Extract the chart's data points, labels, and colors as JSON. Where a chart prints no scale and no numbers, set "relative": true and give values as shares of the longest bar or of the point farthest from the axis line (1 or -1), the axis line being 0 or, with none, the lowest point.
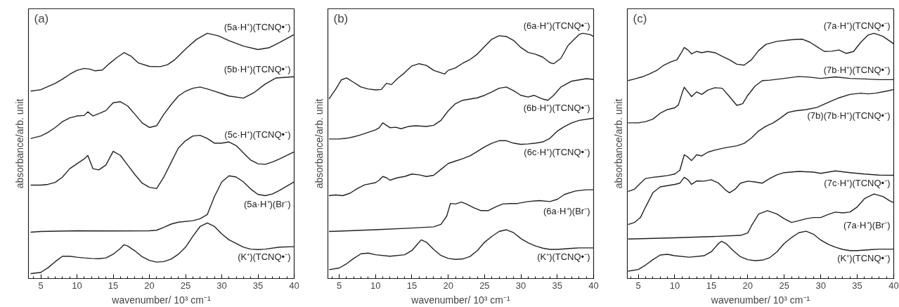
{
  "chart_data": [
    {
      "type": "line",
      "title": "(a)",
      "xlabel": "wavenumber/ 10³ cm⁻¹",
      "ylabel": "absorbance/arb. unit",
      "relative": true,
      "tick_labels": "x",
      "xlim": [
        3.3,
        40
      ],
      "xticks": [
        {
          "value": 4,
          "label": null
        },
        5,
        {
          "value": 6,
          "label": null
        },
        {
          "value": 7,
          "label": null
        },
        {
          "value": 8,
          "label": null
        },
        {
          "value": 9,
          "label": null
        },
        10,
        {
          "value": 11,
          "label": null
        },
        {
          "value": 12,
          "label": null
        },
        {
          "value": 13,
          "label": null
        },
        {
          "value": 14,
          "label": null
        },
        15,
        {
          "value": 16,
          "label": null
        },
        {
          "value": 17,
          "label": null
        },
        {
          "value": 18,
          "label": null
        },
        {
          "value": 19,
          "label": null
        },
        20,
        {
          "value": 21,
          "label": null
        },
        {
          "value": 22,
          "label": null
        },
        {
          "value": 23,
          "label": null
        },
        {
          "value": 24,
          "label": null
        },
        25,
        {
          "value": 26,
          "label": null
        },
        {
          "value": 27,
          "label": null
        },
        {
          "value": 28,
          "label": null
        },
        {
          "value": 29,
          "label": null
        },
        30,
        {
          "value": 31,
          "label": null
        },
        {
          "value": 32,
          "label": null
        },
        {
          "value": 33,
          "label": null
        },
        {
          "value": 34,
          "label": null
        },
        35,
        {
          "value": 36,
          "label": null
        },
        {
          "value": 37,
          "label": null
        },
        {
          "value": 38,
          "label": null
        },
        {
          "value": 39,
          "label": null
        },
        40
      ],
      "series": [
        {
          "name": "(5a·H⁺)(TCNQ•⁻)",
          "color": "#222222",
          "x": [
            3.6,
            4.5,
            5,
            6,
            7,
            8,
            9,
            10,
            11,
            11.8,
            12.5,
            13.5,
            14.5,
            15.5,
            16.5,
            17.5,
            18.5,
            20,
            21.5,
            22.5,
            23.5,
            25,
            26.5,
            28,
            29.5,
            31,
            33,
            35,
            36.5,
            38,
            40
          ],
          "values": [
            0.764,
            0.768,
            0.77,
            0.783,
            0.796,
            0.813,
            0.833,
            0.849,
            0.857,
            0.854,
            0.847,
            0.85,
            0.877,
            0.901,
            0.921,
            0.906,
            0.879,
            0.865,
            0.864,
            0.872,
            0.892,
            0.936,
            0.975,
            1.0,
            0.99,
            0.97,
            0.948,
            0.934,
            0.941,
            0.963,
            0.995
          ]
        },
        {
          "name": "(5b·H⁺)(TCNQ•⁻)",
          "color": "#222222",
          "x": [
            3.6,
            5,
            6,
            7,
            8,
            9,
            10,
            11,
            11.5,
            12.2,
            13,
            14,
            15,
            16,
            17,
            18,
            19,
            20,
            21,
            22,
            23,
            24,
            25,
            26,
            27,
            28,
            29,
            30,
            31,
            33,
            34.5,
            36,
            37.5,
            40
          ],
          "values": [
            0.571,
            0.581,
            0.596,
            0.616,
            0.64,
            0.655,
            0.663,
            0.665,
            0.68,
            0.663,
            0.672,
            0.685,
            0.717,
            0.721,
            0.704,
            0.67,
            0.635,
            0.616,
            0.623,
            0.67,
            0.709,
            0.744,
            0.764,
            0.776,
            0.781,
            0.773,
            0.764,
            0.754,
            0.744,
            0.736,
            0.759,
            0.793,
            0.818,
            0.823
          ]
        },
        {
          "name": "(5c·H⁺)(TCNQ•⁻)",
          "color": "#222222",
          "x": [
            3.6,
            5,
            6,
            7,
            8,
            9,
            10,
            11,
            11.5,
            12.2,
            13,
            14,
            15,
            16,
            17,
            18,
            19,
            20,
            21,
            22,
            23,
            24,
            25,
            26,
            27,
            28,
            29,
            30,
            31,
            32,
            33,
            34,
            35,
            36,
            37,
            38,
            40
          ],
          "values": [
            0.381,
            0.381,
            0.384,
            0.392,
            0.414,
            0.448,
            0.468,
            0.488,
            0.502,
            0.448,
            0.443,
            0.463,
            0.519,
            0.502,
            0.463,
            0.424,
            0.389,
            0.372,
            0.367,
            0.414,
            0.473,
            0.532,
            0.562,
            0.581,
            0.584,
            0.571,
            0.552,
            0.552,
            0.557,
            0.542,
            0.512,
            0.483,
            0.468,
            0.466,
            0.475,
            0.488,
            0.517
          ]
        },
        {
          "name": "(5a·H⁺)(Br⁻)",
          "color": "#222222",
          "x": [
            3.6,
            5,
            10,
            15,
            20,
            21,
            22,
            23,
            24,
            26,
            27,
            28,
            29,
            30,
            31,
            32,
            33,
            34,
            35,
            36,
            37,
            38,
            40
          ],
          "values": [
            0.189,
            0.192,
            0.195,
            0.194,
            0.195,
            0.197,
            0.209,
            0.222,
            0.23,
            0.236,
            0.244,
            0.261,
            0.335,
            0.394,
            0.419,
            0.414,
            0.394,
            0.365,
            0.343,
            0.338,
            0.345,
            0.36,
            0.394
          ]
        },
        {
          "name": "(K⁺)(TCNQ•⁻)",
          "color": "#222222",
          "x": [
            3.6,
            5,
            6,
            7,
            8,
            9,
            10,
            11,
            12,
            13,
            14,
            15,
            16,
            16.5,
            17,
            18,
            19,
            20,
            21,
            22,
            23,
            24,
            25,
            26,
            27,
            28,
            29,
            30,
            31,
            32,
            33,
            34,
            35,
            36,
            38,
            40
          ],
          "values": [
            0.02,
            0.025,
            0.044,
            0.069,
            0.091,
            0.091,
            0.087,
            0.084,
            0.082,
            0.081,
            0.084,
            0.099,
            0.123,
            0.138,
            0.133,
            0.113,
            0.089,
            0.074,
            0.067,
            0.069,
            0.079,
            0.099,
            0.128,
            0.172,
            0.212,
            0.227,
            0.212,
            0.182,
            0.158,
            0.143,
            0.128,
            0.12,
            0.118,
            0.12,
            0.128,
            0.13
          ]
        }
      ]
    },
    {
      "type": "line",
      "title": "(b)",
      "xlabel": "wavenumber/ 10³ cm⁻¹",
      "ylabel": "absorbance/arb. unit",
      "relative": true,
      "tick_labels": "x",
      "xlim": [
        3.45,
        40
      ],
      "xticks": [
        {
          "value": 4,
          "label": null
        },
        5,
        {
          "value": 6,
          "label": null
        },
        {
          "value": 7,
          "label": null
        },
        {
          "value": 8,
          "label": null
        },
        {
          "value": 9,
          "label": null
        },
        10,
        {
          "value": 11,
          "label": null
        },
        {
          "value": 12,
          "label": null
        },
        {
          "value": 13,
          "label": null
        },
        {
          "value": 14,
          "label": null
        },
        15,
        {
          "value": 16,
          "label": null
        },
        {
          "value": 17,
          "label": null
        },
        {
          "value": 18,
          "label": null
        },
        {
          "value": 19,
          "label": null
        },
        20,
        {
          "value": 21,
          "label": null
        },
        {
          "value": 22,
          "label": null
        },
        {
          "value": 23,
          "label": null
        },
        {
          "value": 24,
          "label": null
        },
        25,
        {
          "value": 26,
          "label": null
        },
        {
          "value": 27,
          "label": null
        },
        {
          "value": 28,
          "label": null
        },
        {
          "value": 29,
          "label": null
        },
        30,
        {
          "value": 31,
          "label": null
        },
        {
          "value": 32,
          "label": null
        },
        {
          "value": 33,
          "label": null
        },
        {
          "value": 34,
          "label": null
        },
        35,
        {
          "value": 36,
          "label": null
        },
        {
          "value": 37,
          "label": null
        },
        {
          "value": 38,
          "label": null
        },
        {
          "value": 39,
          "label": null
        },
        40
      ],
      "series": [
        {
          "name": "(6a·H⁺)(TCNQ•⁻)",
          "color": "#222222",
          "x": [
            3.6,
            4.5,
            5.3,
            6,
            7,
            8,
            9,
            10,
            10.8,
            11.5,
            12.2,
            13,
            14,
            15,
            16,
            17,
            18,
            19,
            19.5,
            20,
            21,
            22,
            23,
            24,
            25,
            26,
            27,
            28,
            29,
            30,
            31,
            32,
            33,
            34,
            34.5,
            35.5,
            36.5,
            38,
            38.5,
            39.5,
            40
          ],
          "values": [
            0.732,
            0.771,
            0.81,
            0.818,
            0.8,
            0.781,
            0.773,
            0.769,
            0.771,
            0.796,
            0.791,
            0.815,
            0.839,
            0.867,
            0.876,
            0.869,
            0.849,
            0.839,
            0.834,
            0.849,
            0.859,
            0.878,
            0.893,
            0.915,
            0.946,
            0.976,
            0.99,
            0.987,
            0.971,
            0.942,
            0.922,
            0.915,
            0.903,
            0.88,
            0.876,
            0.898,
            0.951,
            0.995,
            1.0,
            0.995,
            0.987
          ]
        },
        {
          "name": "(6b·H⁺)(TCNQ•⁻)",
          "color": "#222222",
          "x": [
            3.6,
            5,
            6,
            7,
            8,
            9,
            10,
            10.5,
            11,
            11.5,
            12,
            12.8,
            13.5,
            14.5,
            15.5,
            17,
            18,
            19,
            20,
            21,
            22,
            23,
            24,
            25,
            26,
            27,
            28,
            29,
            30,
            31,
            31.8,
            33,
            33.7,
            34.5,
            35.5,
            37,
            39,
            40
          ],
          "values": [
            0.569,
            0.569,
            0.572,
            0.578,
            0.586,
            0.596,
            0.606,
            0.615,
            0.635,
            0.625,
            0.615,
            0.617,
            0.611,
            0.62,
            0.623,
            0.62,
            0.625,
            0.645,
            0.684,
            0.713,
            0.727,
            0.732,
            0.737,
            0.747,
            0.761,
            0.776,
            0.781,
            0.766,
            0.747,
            0.74,
            0.747,
            0.732,
            0.727,
            0.747,
            0.781,
            0.805,
            0.815,
            0.812
          ]
        },
        {
          "name": "(6c·H⁺)(TCNQ•⁻)",
          "color": "#222222",
          "x": [
            3.6,
            4.5,
            5.5,
            6.5,
            7.5,
            8.5,
            10,
            10.5,
            11,
            11.5,
            12,
            13,
            14,
            15,
            16,
            17,
            18,
            19,
            20,
            21,
            22,
            23,
            24,
            25,
            26,
            27,
            28,
            29,
            30,
            31,
            32,
            33,
            34,
            35,
            36,
            37,
            38,
            40
          ],
          "values": [
            0.338,
            0.341,
            0.338,
            0.348,
            0.367,
            0.382,
            0.391,
            0.401,
            0.416,
            0.411,
            0.401,
            0.411,
            0.416,
            0.426,
            0.423,
            0.416,
            0.421,
            0.445,
            0.469,
            0.479,
            0.489,
            0.5,
            0.518,
            0.537,
            0.552,
            0.562,
            0.562,
            0.552,
            0.547,
            0.549,
            0.552,
            0.557,
            0.572,
            0.601,
            0.62,
            0.635,
            0.645,
            0.654
          ]
        },
        {
          "name": "(6a·H⁺)(Br⁻)",
          "color": "#222222",
          "x": [
            3.6,
            10,
            15,
            18,
            19,
            19.8,
            20.3,
            21,
            21.8,
            22.5,
            23.5,
            24.5,
            25.5,
            26.5,
            27.5,
            28.5,
            29.5,
            31,
            32.5,
            34,
            35,
            36,
            37.5,
            39,
            40
          ],
          "values": [
            0.192,
            0.199,
            0.206,
            0.211,
            0.221,
            0.255,
            0.306,
            0.304,
            0.312,
            0.304,
            0.289,
            0.277,
            0.277,
            0.292,
            0.304,
            0.306,
            0.306,
            0.314,
            0.318,
            0.314,
            0.323,
            0.343,
            0.357,
            0.362,
            0.362
          ]
        },
        {
          "name": "(K⁺)(TCNQ•⁻)",
          "color": "#222222",
          "x": [
            3.6,
            5,
            6,
            7,
            8,
            9,
            10,
            12,
            14,
            15,
            16,
            16.3,
            17,
            18,
            19,
            20,
            21,
            22,
            23,
            24,
            25,
            26,
            27,
            28,
            29,
            30,
            31,
            32,
            33,
            34,
            35,
            37,
            38,
            40
          ],
          "values": [
            0.036,
            0.043,
            0.06,
            0.082,
            0.101,
            0.104,
            0.097,
            0.091,
            0.097,
            0.114,
            0.148,
            0.158,
            0.148,
            0.119,
            0.094,
            0.082,
            0.078,
            0.08,
            0.09,
            0.114,
            0.148,
            0.172,
            0.192,
            0.199,
            0.187,
            0.163,
            0.146,
            0.133,
            0.124,
            0.119,
            0.119,
            0.123,
            0.125,
            0.125
          ]
        }
      ]
    },
    {
      "type": "line",
      "title": "(c)",
      "xlabel": "wavenumber/ 10³ cm⁻¹",
      "ylabel": "absorbance/arb. unit",
      "relative": true,
      "tick_labels": "x",
      "xlim": [
        3.5,
        40
      ],
      "xticks": [
        {
          "value": 4,
          "label": null
        },
        5,
        {
          "value": 6,
          "label": null
        },
        {
          "value": 7,
          "label": null
        },
        {
          "value": 8,
          "label": null
        },
        {
          "value": 9,
          "label": null
        },
        10,
        {
          "value": 11,
          "label": null
        },
        {
          "value": 12,
          "label": null
        },
        {
          "value": 13,
          "label": null
        },
        {
          "value": 14,
          "label": null
        },
        15,
        {
          "value": 16,
          "label": null
        },
        {
          "value": 17,
          "label": null
        },
        {
          "value": 18,
          "label": null
        },
        {
          "value": 19,
          "label": null
        },
        20,
        {
          "value": 21,
          "label": null
        },
        {
          "value": 22,
          "label": null
        },
        {
          "value": 23,
          "label": null
        },
        {
          "value": 24,
          "label": null
        },
        25,
        {
          "value": 26,
          "label": null
        },
        {
          "value": 27,
          "label": null
        },
        {
          "value": 28,
          "label": null
        },
        {
          "value": 29,
          "label": null
        },
        30,
        {
          "value": 31,
          "label": null
        },
        {
          "value": 32,
          "label": null
        },
        {
          "value": 33,
          "label": null
        },
        {
          "value": 34,
          "label": null
        },
        35,
        {
          "value": 36,
          "label": null
        },
        {
          "value": 37,
          "label": null
        },
        {
          "value": 38,
          "label": null
        },
        {
          "value": 39,
          "label": null
        },
        40
      ],
      "series": [
        {
          "name": "(7a·H⁺)(TCNQ•⁻)",
          "color": "#222222",
          "x": [
            3.6,
            4.5,
            5.5,
            6.5,
            7.5,
            8.5,
            9.5,
            10.3,
            10.8,
            11.3,
            11.8,
            12.3,
            13,
            13.7,
            14.5,
            15.5,
            16.5,
            17.5,
            18.5,
            19.5,
            20.5,
            21.5,
            22.5,
            24,
            26,
            27.5,
            28.5,
            29.5,
            30.5,
            31.5,
            32.5,
            33.5,
            34.5,
            35.5,
            36.5,
            37.3,
            38.5,
            40
          ],
          "values": [
            0.807,
            0.814,
            0.822,
            0.834,
            0.848,
            0.87,
            0.884,
            0.892,
            0.916,
            0.942,
            0.932,
            0.916,
            0.926,
            0.921,
            0.926,
            0.921,
            0.906,
            0.892,
            0.874,
            0.87,
            0.892,
            0.93,
            0.955,
            0.967,
            0.974,
            0.976,
            0.964,
            0.945,
            0.926,
            0.927,
            0.932,
            0.918,
            0.926,
            0.964,
            0.993,
            1.0,
            0.988,
            0.957
          ]
        },
        {
          "name": "(7b·H⁺)(TCNQ•⁻)",
          "color": "#222222",
          "x": [
            3.6,
            5,
            6,
            7,
            8,
            9,
            10,
            10.5,
            11,
            11.3,
            11.8,
            12.3,
            13,
            13.7,
            14.5,
            15.5,
            16.5,
            17.5,
            18.5,
            19.3,
            20,
            21,
            22,
            23,
            25,
            27,
            28.5,
            30,
            32,
            34,
            36,
            38,
            40
          ],
          "values": [
            0.635,
            0.635,
            0.64,
            0.65,
            0.674,
            0.689,
            0.696,
            0.708,
            0.756,
            0.78,
            0.761,
            0.742,
            0.761,
            0.751,
            0.768,
            0.778,
            0.776,
            0.742,
            0.706,
            0.713,
            0.747,
            0.785,
            0.807,
            0.809,
            0.816,
            0.824,
            0.821,
            0.816,
            0.822,
            0.816,
            0.814,
            0.811,
            0.811
          ]
        },
        {
          "name": "(7b)(7b·H⁺)(TCNQ•⁻)",
          "color": "#222222",
          "x": [
            3.6,
            4.5,
            5.3,
            6,
            7,
            8,
            9,
            10,
            10.7,
            11.3,
            11.8,
            12.3,
            13,
            13.7,
            14.5,
            15.5,
            17,
            18.5,
            19.5,
            20.5,
            21.5,
            22.5,
            23.5,
            24.5,
            25.5,
            26.5,
            28,
            29.5,
            31,
            32.5,
            34,
            35.5,
            36.5,
            37.5,
            39,
            40
          ],
          "values": [
            0.355,
            0.365,
            0.389,
            0.408,
            0.413,
            0.416,
            0.42,
            0.426,
            0.442,
            0.505,
            0.495,
            0.481,
            0.505,
            0.5,
            0.515,
            0.524,
            0.534,
            0.541,
            0.551,
            0.573,
            0.602,
            0.621,
            0.635,
            0.655,
            0.677,
            0.684,
            0.689,
            0.698,
            0.718,
            0.737,
            0.751,
            0.756,
            0.753,
            0.756,
            0.764,
            0.771
          ]
        },
        {
          "name": "(7c·H⁺)(TCNQ•⁻)",
          "color": "#222222",
          "x": [
            3.6,
            4.5,
            5.3,
            6,
            7,
            8,
            9,
            10,
            10.7,
            11.3,
            11.8,
            12.3,
            13,
            14,
            15,
            16,
            17,
            17.5,
            18.3,
            19,
            20,
            21,
            22,
            23,
            24,
            25,
            27,
            29,
            30,
            32,
            34,
            36,
            38,
            40
          ],
          "values": [
            0.22,
            0.229,
            0.249,
            0.292,
            0.35,
            0.374,
            0.379,
            0.384,
            0.389,
            0.413,
            0.403,
            0.384,
            0.398,
            0.397,
            0.403,
            0.389,
            0.36,
            0.35,
            0.365,
            0.389,
            0.397,
            0.394,
            0.389,
            0.408,
            0.423,
            0.432,
            0.437,
            0.434,
            0.429,
            0.439,
            0.432,
            0.426,
            0.422,
            0.421
          ]
        },
        {
          "name": "(7a·H⁺)(Br⁻)",
          "color": "#222222",
          "x": [
            3.6,
            10,
            15,
            19,
            20,
            20.5,
            21.5,
            22.7,
            24,
            25,
            26,
            27,
            28,
            29,
            30,
            31,
            32,
            33,
            34,
            35,
            36,
            37.3,
            38.5,
            39.5,
            40
          ],
          "values": [
            0.161,
            0.166,
            0.171,
            0.176,
            0.186,
            0.215,
            0.263,
            0.277,
            0.263,
            0.244,
            0.229,
            0.236,
            0.244,
            0.249,
            0.249,
            0.261,
            0.271,
            0.268,
            0.271,
            0.292,
            0.326,
            0.345,
            0.335,
            0.316,
            0.31
          ]
        },
        {
          "name": "(K⁺)(TCNQ•⁻)",
          "color": "#222222",
          "x": [
            3.6,
            5,
            6,
            7,
            8,
            9,
            10,
            12,
            14,
            15,
            16,
            16.4,
            17,
            18,
            19,
            20,
            21,
            22,
            23,
            24,
            25,
            26,
            27,
            28,
            29,
            30,
            31,
            32,
            33,
            34,
            35,
            37,
            38,
            40
          ],
          "values": [
            0.03,
            0.037,
            0.055,
            0.077,
            0.096,
            0.099,
            0.093,
            0.087,
            0.093,
            0.109,
            0.143,
            0.152,
            0.143,
            0.114,
            0.089,
            0.077,
            0.073,
            0.075,
            0.085,
            0.109,
            0.143,
            0.167,
            0.187,
            0.193,
            0.181,
            0.157,
            0.14,
            0.128,
            0.119,
            0.114,
            0.114,
            0.118,
            0.12,
            0.12
          ]
        }
      ]
    }
  ]
}
